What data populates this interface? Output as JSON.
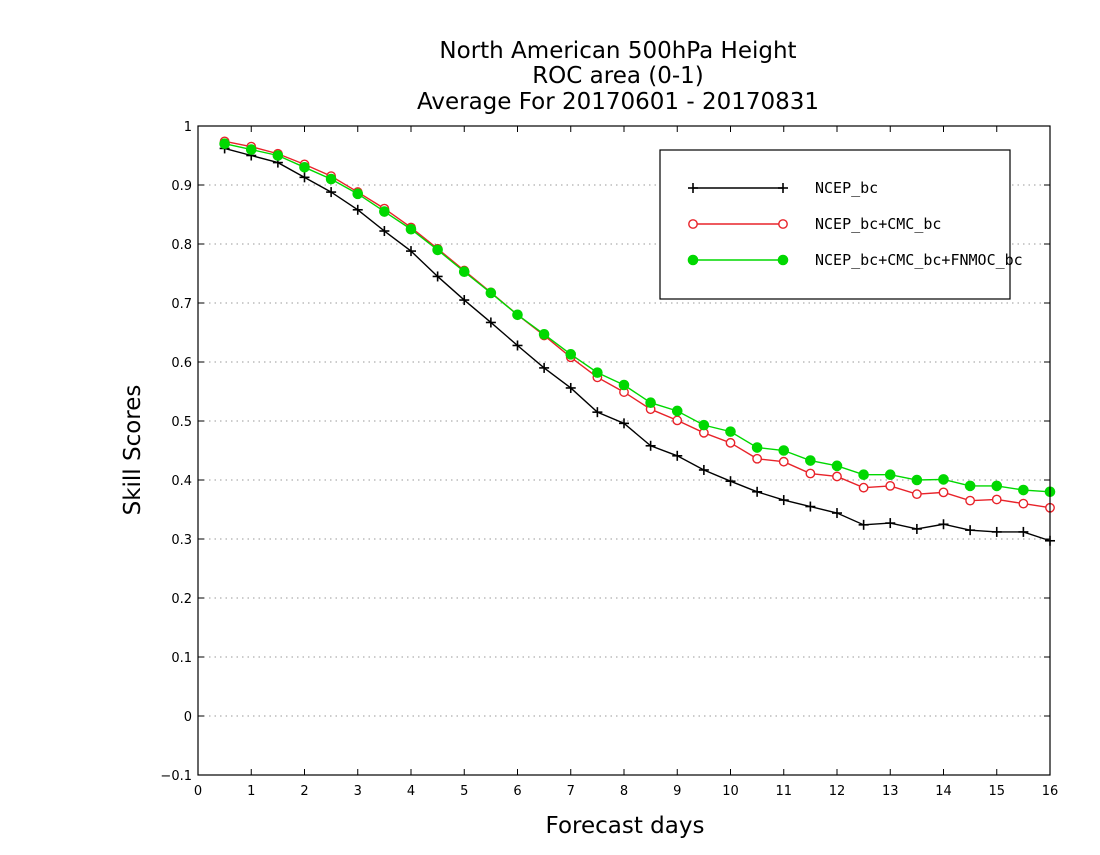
{
  "chart_data": {
    "type": "line",
    "title": [
      "North American 500hPa Height",
      "ROC area (0-1)",
      "Average For 20170601 - 20170831"
    ],
    "xlabel": "Forecast days",
    "ylabel": "Skill Scores",
    "xlim": [
      0,
      16
    ],
    "ylim": [
      -0.1,
      1
    ],
    "x_ticks": [
      "0",
      "1",
      "2",
      "3",
      "4",
      "5",
      "6",
      "7",
      "8",
      "9",
      "10",
      "11",
      "12",
      "13",
      "14",
      "15",
      "16"
    ],
    "y_ticks": [
      "−0.1",
      "0",
      "0.1",
      "0.2",
      "0.3",
      "0.4",
      "0.5",
      "0.6",
      "0.7",
      "0.8",
      "0.9",
      "1"
    ],
    "grid": "horizontal dotted",
    "legend_position": "top-right",
    "x": [
      0.5,
      1,
      1.5,
      2,
      2.5,
      3,
      3.5,
      4,
      4.5,
      5,
      5.5,
      6,
      6.5,
      7,
      7.5,
      8,
      8.5,
      9,
      9.5,
      10,
      10.5,
      11,
      11.5,
      12,
      12.5,
      13,
      13.5,
      14,
      14.5,
      15,
      15.5,
      16
    ],
    "series": [
      {
        "name": "NCEP_bc",
        "color": "#000000",
        "marker": "plus",
        "values": [
          0.962,
          0.95,
          0.938,
          0.913,
          0.888,
          0.858,
          0.822,
          0.788,
          0.745,
          0.705,
          0.667,
          0.628,
          0.59,
          0.556,
          0.515,
          0.496,
          0.458,
          0.441,
          0.417,
          0.398,
          0.38,
          0.366,
          0.355,
          0.344,
          0.324,
          0.327,
          0.317,
          0.325,
          0.315,
          0.312,
          0.312,
          0.297
        ]
      },
      {
        "name": "NCEP_bc+CMC_bc",
        "color": "#e8232a",
        "marker": "open-circle",
        "values": [
          0.974,
          0.965,
          0.953,
          0.935,
          0.915,
          0.888,
          0.86,
          0.828,
          0.792,
          0.755,
          0.718,
          0.68,
          0.645,
          0.608,
          0.574,
          0.549,
          0.52,
          0.501,
          0.48,
          0.463,
          0.436,
          0.431,
          0.411,
          0.406,
          0.387,
          0.39,
          0.376,
          0.379,
          0.365,
          0.367,
          0.36,
          0.353
        ]
      },
      {
        "name": "NCEP_bc+CMC_bc+FNMOC_bc",
        "color": "#00d800",
        "marker": "filled-circle",
        "values": [
          0.97,
          0.96,
          0.95,
          0.93,
          0.91,
          0.885,
          0.855,
          0.825,
          0.79,
          0.753,
          0.717,
          0.68,
          0.647,
          0.613,
          0.582,
          0.561,
          0.531,
          0.517,
          0.493,
          0.482,
          0.455,
          0.45,
          0.433,
          0.424,
          0.409,
          0.409,
          0.4,
          0.401,
          0.39,
          0.39,
          0.383,
          0.38
        ]
      }
    ]
  }
}
